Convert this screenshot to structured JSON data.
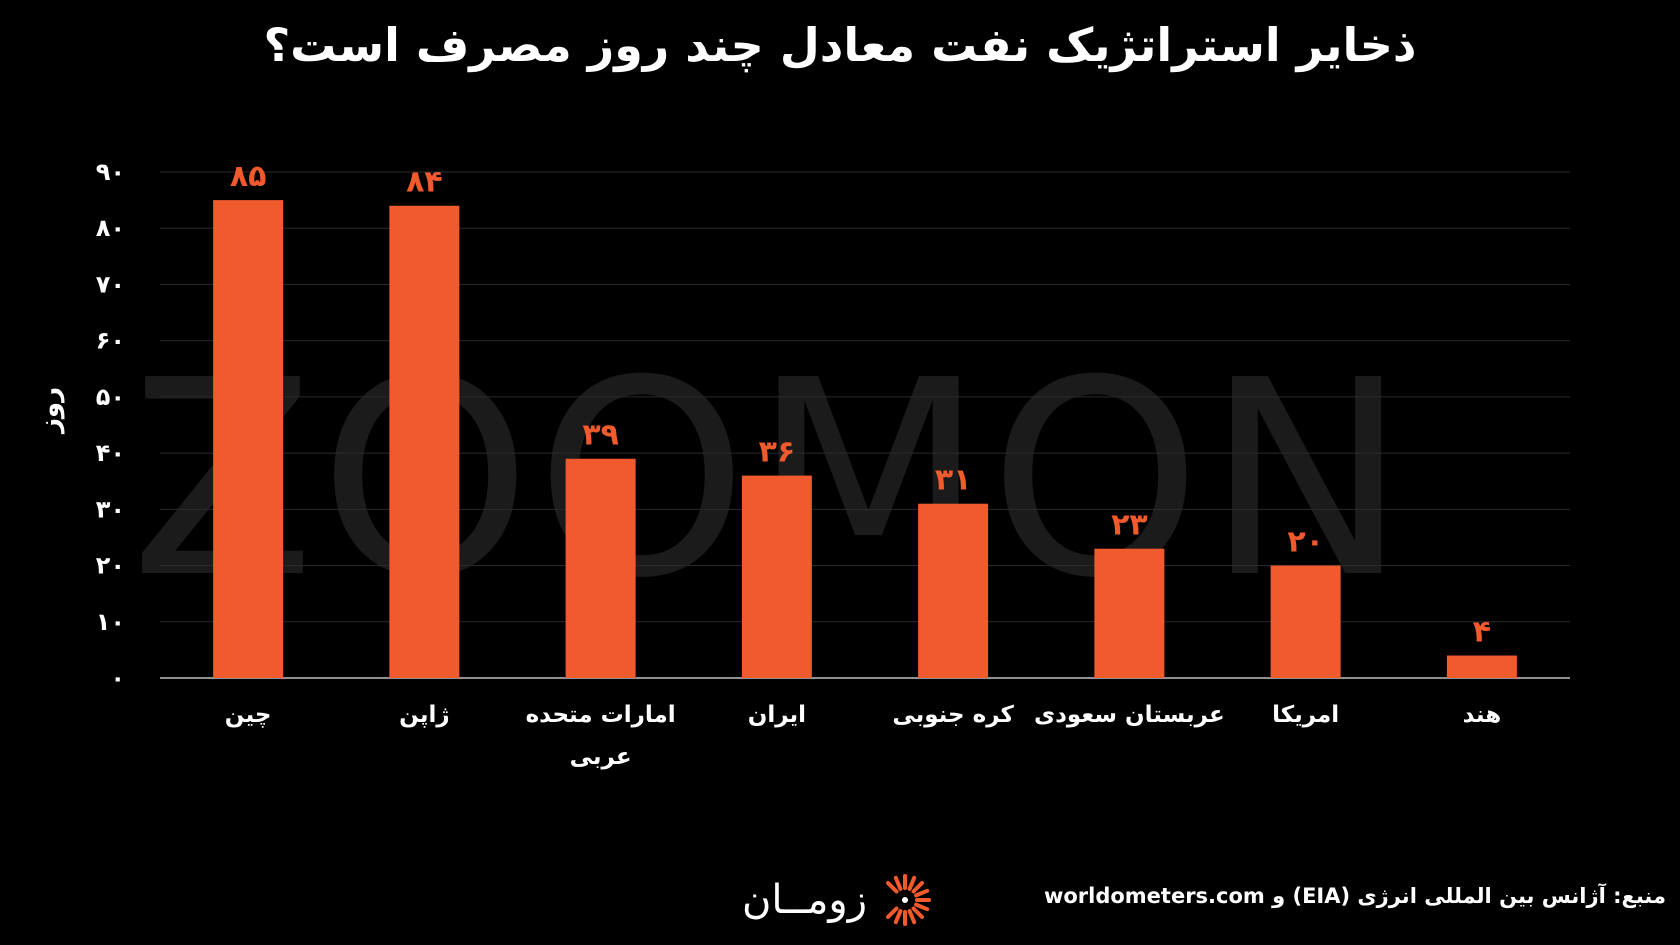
{
  "title": "ذخایر استراتژیک نفت معادل چند روز مصرف است؟",
  "watermark": "ZOOMON",
  "source": "منبع: آژانس بین المللی انرژی (EIA) و worldometers.com",
  "logo": {
    "text": "زومــان",
    "icon": "sunburst-logo-icon"
  },
  "colors": {
    "bar": "#F05A2C",
    "label": "#F05A2C",
    "background": "#000000",
    "grid": "#2a2a2a"
  },
  "chart_data": {
    "type": "bar",
    "title": "ذخایر استراتژیک نفت معادل چند روز مصرف است؟",
    "ylabel": "روز",
    "xlabel": "",
    "ylim": [
      0,
      90
    ],
    "yticks": [
      0,
      10,
      20,
      30,
      40,
      50,
      60,
      70,
      80,
      90
    ],
    "ytick_labels": [
      "۰",
      "۱۰",
      "۲۰",
      "۳۰",
      "۴۰",
      "۵۰",
      "۶۰",
      "۷۰",
      "۸۰",
      "۹۰"
    ],
    "grid": true,
    "categories": [
      [
        "چین"
      ],
      [
        "ژاپن"
      ],
      [
        "امارات متحده",
        "عربی"
      ],
      [
        "ایران"
      ],
      [
        "کره جنوبی"
      ],
      [
        "عربستان سعودی"
      ],
      [
        "امریکا"
      ],
      [
        "هند"
      ]
    ],
    "values": [
      85,
      84,
      39,
      36,
      31,
      23,
      20,
      4
    ],
    "value_labels": [
      "۸۵",
      "۸۴",
      "۳۹",
      "۳۶",
      "۳۱",
      "۲۳",
      "۲۰",
      "۴"
    ]
  }
}
